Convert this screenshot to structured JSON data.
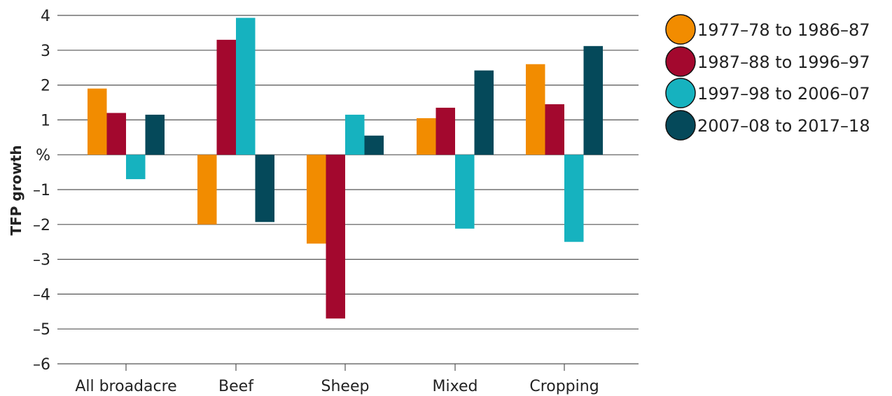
{
  "chart_data": {
    "type": "bar",
    "title": "",
    "xlabel": "",
    "ylabel": "TFP growth",
    "ylim": [
      -6,
      4
    ],
    "yticks": [
      {
        "value": 4,
        "label": "4"
      },
      {
        "value": 3,
        "label": "3"
      },
      {
        "value": 2,
        "label": "2"
      },
      {
        "value": 1,
        "label": "1"
      },
      {
        "value": 0,
        "label": "%"
      },
      {
        "value": -1,
        "label": "–1"
      },
      {
        "value": -2,
        "label": "–2"
      },
      {
        "value": -3,
        "label": "–3"
      },
      {
        "value": -4,
        "label": "–4"
      },
      {
        "value": -5,
        "label": "–5"
      },
      {
        "value": -6,
        "label": "–6"
      }
    ],
    "grid": true,
    "legend_position": "right",
    "categories": [
      "All broadacre",
      "Beef",
      "Sheep",
      "Mixed",
      "Cropping"
    ],
    "series": [
      {
        "name": "1977–78 to 1986–87",
        "color": "#F28C00",
        "values": [
          1.9,
          -2.0,
          -2.55,
          1.05,
          2.6
        ]
      },
      {
        "name": "1987–88 to 1996–97",
        "color": "#A3082E",
        "values": [
          1.2,
          3.3,
          -4.7,
          1.35,
          1.45
        ]
      },
      {
        "name": "1997–98 to 2006–07",
        "color": "#16B2BF",
        "values": [
          -0.7,
          3.93,
          1.15,
          -2.12,
          -2.5
        ]
      },
      {
        "name": "2007–08 to 2017–18",
        "color": "#05495A",
        "values": [
          1.15,
          -1.93,
          0.55,
          2.42,
          3.12
        ]
      }
    ]
  }
}
